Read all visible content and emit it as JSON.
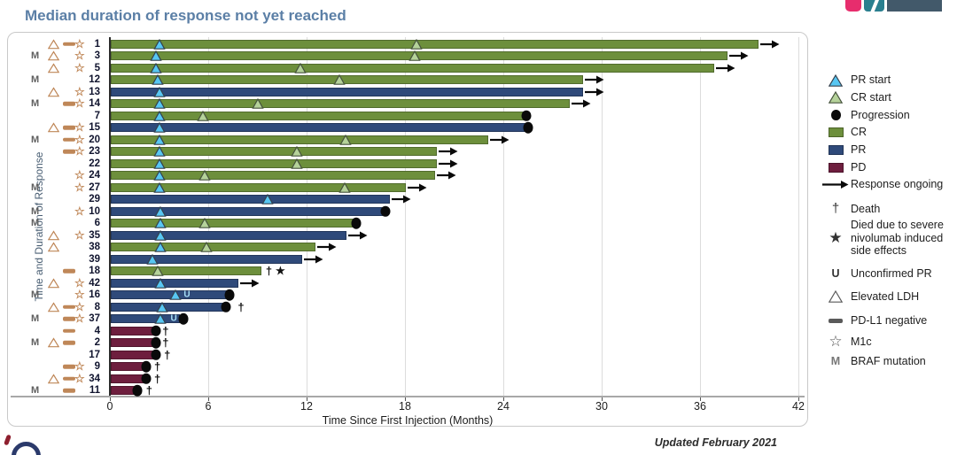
{
  "page": {
    "title": "Median duration of response not yet reached",
    "updated": "Updated February 2021"
  },
  "colors": {
    "cr": "#6d8f3c",
    "pr": "#2f4a7a",
    "pd": "#6e1e3e",
    "pr_start": "#58c7f3",
    "cr_start": "#b5d29a",
    "flag": "#bf8758",
    "title": "#5b7fa6"
  },
  "chart_data": {
    "type": "bar",
    "subtype": "swimmer",
    "title": "Median duration of response not yet reached",
    "xlabel": "Time Since First Injection (Months)",
    "ylabel": "Time and Duration of Response",
    "xlim": [
      0,
      42
    ],
    "xticks": [
      0,
      6,
      12,
      18,
      24,
      30,
      36,
      42
    ],
    "grid": "vertical",
    "legend_position": "right",
    "legend": {
      "section1": [
        {
          "symbol": "pr-start-triangle",
          "label": "PR start"
        },
        {
          "symbol": "cr-start-triangle",
          "label": "CR start"
        },
        {
          "symbol": "progression-dot",
          "label": "Progression"
        },
        {
          "symbol": "cr-swatch",
          "label": "CR"
        },
        {
          "symbol": "pr-swatch",
          "label": "PR"
        },
        {
          "symbol": "pd-swatch",
          "label": "PD"
        },
        {
          "symbol": "ongoing-arrow",
          "label": "Response ongoing"
        }
      ],
      "section2": [
        {
          "symbol": "dagger",
          "label": "Death"
        },
        {
          "symbol": "black-star",
          "label": "Died due to severe nivolumab induced side effects"
        },
        {
          "symbol": "letter-u",
          "label": "Unconfirmed PR"
        },
        {
          "symbol": "open-triangle",
          "label": "Elevated LDH"
        },
        {
          "symbol": "dash",
          "label": "PD-L1 negative"
        },
        {
          "symbol": "open-star",
          "label": "M1c"
        },
        {
          "symbol": "letter-m",
          "label": "BRAF mutation"
        }
      ]
    },
    "patients": [
      {
        "id": "1",
        "flags": [
          "ldh",
          "pdl1",
          "m1c"
        ],
        "response": "CR",
        "duration": 39.5,
        "pr_start": 3.0,
        "cr_start": 18.7,
        "ongoing": true
      },
      {
        "id": "3",
        "flags": [
          "braf",
          "ldh",
          "m1c"
        ],
        "response": "CR",
        "duration": 37.6,
        "pr_start": 2.8,
        "cr_start": 18.6,
        "ongoing": true
      },
      {
        "id": "5",
        "flags": [
          "ldh",
          "m1c"
        ],
        "response": "CR",
        "duration": 36.8,
        "pr_start": 2.8,
        "cr_start": 11.6,
        "ongoing": true
      },
      {
        "id": "12",
        "flags": [
          "braf"
        ],
        "response": "CR",
        "duration": 28.8,
        "pr_start": 2.9,
        "cr_start": 14.0,
        "ongoing": true
      },
      {
        "id": "13",
        "flags": [
          "ldh",
          "m1c"
        ],
        "response": "PR",
        "duration": 28.8,
        "pr_start": 3.0,
        "ongoing": true
      },
      {
        "id": "14",
        "flags": [
          "braf",
          "pdl1",
          "m1c"
        ],
        "response": "CR",
        "duration": 28.0,
        "pr_start": 3.0,
        "cr_start": 9.0,
        "ongoing": true
      },
      {
        "id": "7",
        "flags": [],
        "response": "CR",
        "duration": 25.4,
        "pr_start": 3.0,
        "cr_start": 5.7,
        "progression": 25.4
      },
      {
        "id": "15",
        "flags": [
          "ldh",
          "pdl1",
          "m1c"
        ],
        "response": "PR",
        "duration": 25.5,
        "pr_start": 3.0,
        "progression": 25.5
      },
      {
        "id": "20",
        "flags": [
          "braf",
          "pdl1",
          "m1c"
        ],
        "response": "CR",
        "duration": 23.0,
        "pr_start": 3.0,
        "cr_start": 14.4,
        "ongoing": true
      },
      {
        "id": "23",
        "flags": [
          "pdl1",
          "m1c"
        ],
        "response": "CR",
        "duration": 19.9,
        "pr_start": 3.0,
        "cr_start": 11.4,
        "ongoing": true
      },
      {
        "id": "22",
        "flags": [],
        "response": "CR",
        "duration": 19.9,
        "pr_start": 3.0,
        "cr_start": 11.4,
        "ongoing": true
      },
      {
        "id": "24",
        "flags": [
          "m1c"
        ],
        "response": "CR",
        "duration": 19.8,
        "pr_start": 3.0,
        "cr_start": 5.8,
        "ongoing": true
      },
      {
        "id": "27",
        "flags": [
          "braf",
          "m1c"
        ],
        "response": "CR",
        "duration": 18.0,
        "pr_start": 3.0,
        "cr_start": 14.3,
        "ongoing": true
      },
      {
        "id": "29",
        "flags": [],
        "response": "PR",
        "duration": 17.0,
        "pr_start": 9.6,
        "ongoing": true
      },
      {
        "id": "10",
        "flags": [
          "braf",
          "m1c"
        ],
        "response": "PR",
        "duration": 16.6,
        "pr_start": 3.1,
        "progression": 16.8
      },
      {
        "id": "6",
        "flags": [
          "braf"
        ],
        "response": "CR",
        "duration": 14.8,
        "pr_start": 3.1,
        "cr_start": 5.8,
        "progression": 15.0
      },
      {
        "id": "35",
        "flags": [
          "ldh",
          "m1c"
        ],
        "response": "PR",
        "duration": 14.4,
        "pr_start": 3.1,
        "ongoing": true
      },
      {
        "id": "38",
        "flags": [
          "ldh"
        ],
        "response": "CR",
        "duration": 12.5,
        "pr_start": 3.1,
        "cr_start": 5.9,
        "ongoing": true
      },
      {
        "id": "39",
        "flags": [],
        "response": "PR",
        "duration": 11.7,
        "pr_start": 2.6,
        "ongoing": true
      },
      {
        "id": "18",
        "flags": [
          "pdl1"
        ],
        "response": "CR",
        "duration": 9.2,
        "cr_start": 2.9,
        "death": 9.7,
        "nivo_death": 10.4
      },
      {
        "id": "42",
        "flags": [
          "ldh",
          "m1c"
        ],
        "response": "PR",
        "duration": 7.8,
        "pr_start": 3.1,
        "ongoing": true
      },
      {
        "id": "16",
        "flags": [
          "braf",
          "m1c"
        ],
        "response": "PR",
        "duration": 7.2,
        "pr_start": 4.0,
        "unconfirmed_pr": 4.7,
        "progression": 7.3
      },
      {
        "id": "8",
        "flags": [
          "ldh",
          "pdl1",
          "m1c"
        ],
        "response": "PR",
        "duration": 7.0,
        "pr_start": 3.2,
        "progression": 7.1,
        "death": 8.0
      },
      {
        "id": "37",
        "flags": [
          "braf",
          "pdl1",
          "m1c"
        ],
        "response": "PR",
        "duration": 4.2,
        "pr_start": 3.1,
        "unconfirmed_pr": 3.9,
        "progression": 4.5
      },
      {
        "id": "4",
        "flags": [
          "pdl1"
        ],
        "response": "PD",
        "duration": 2.7,
        "progression": 2.8,
        "death": 3.4
      },
      {
        "id": "2",
        "flags": [
          "braf",
          "ldh",
          "pdl1"
        ],
        "response": "PD",
        "duration": 2.7,
        "progression": 2.8,
        "death": 3.4
      },
      {
        "id": "17",
        "flags": [],
        "response": "PD",
        "duration": 2.7,
        "progression": 2.8,
        "death": 3.5
      },
      {
        "id": "9",
        "flags": [
          "pdl1",
          "m1c"
        ],
        "response": "PD",
        "duration": 2.1,
        "progression": 2.2,
        "death": 2.9
      },
      {
        "id": "34",
        "flags": [
          "ldh",
          "pdl1",
          "m1c"
        ],
        "response": "PD",
        "duration": 2.1,
        "progression": 2.2,
        "death": 2.9
      },
      {
        "id": "11",
        "flags": [
          "braf",
          "pdl1"
        ],
        "response": "PD",
        "duration": 1.6,
        "progression": 1.7,
        "death": 2.4
      }
    ]
  }
}
